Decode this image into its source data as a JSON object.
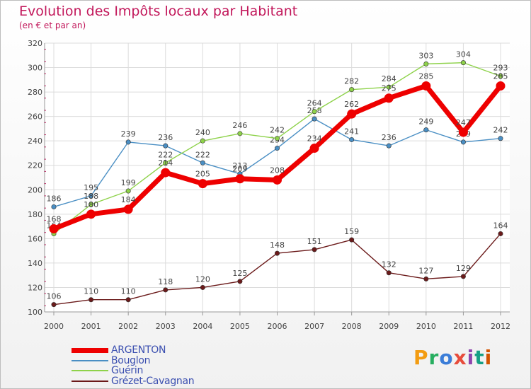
{
  "title": "Evolution des Impôts locaux par Habitant",
  "subtitle": "(en € et par an)",
  "logo_text": "Proxiti",
  "logo_colors": [
    "#f39c12",
    "#27ae60",
    "#3b7dd8",
    "#e74c3c",
    "#8e44ad",
    "#16a085",
    "#d35400"
  ],
  "chart_data": {
    "type": "line",
    "x": [
      "2000",
      "2001",
      "2002",
      "2003",
      "2004",
      "2005",
      "2006",
      "2007",
      "2008",
      "2009",
      "2010",
      "2011",
      "2012"
    ],
    "ylim": [
      100,
      320
    ],
    "yticks": [
      100,
      120,
      140,
      160,
      180,
      200,
      220,
      240,
      260,
      280,
      300,
      320
    ],
    "grid": true,
    "legend_position": "bottom-left",
    "series": [
      {
        "name": "Grézet-Cavagnan",
        "color": "#6b1a1a",
        "values": [
          106,
          110,
          110,
          118,
          120,
          125,
          148,
          151,
          159,
          132,
          127,
          129,
          164
        ],
        "weight": "thin"
      },
      {
        "name": "Bouglon",
        "color": "#4a8fc4",
        "values": [
          186,
          195,
          239,
          236,
          222,
          213,
          234,
          258,
          241,
          236,
          249,
          239,
          242
        ],
        "weight": "thin"
      },
      {
        "name": "Guérin",
        "color": "#8ed24a",
        "values": [
          164,
          188,
          199,
          222,
          240,
          246,
          242,
          264,
          282,
          284,
          303,
          304,
          293
        ],
        "weight": "thin"
      },
      {
        "name": "ARGENTON",
        "color": "#ee0000",
        "values": [
          168,
          180,
          184,
          214,
          205,
          209,
          208,
          234,
          262,
          275,
          285,
          247,
          285
        ],
        "weight": "thick"
      }
    ]
  },
  "legend": [
    {
      "name": "ARGENTON",
      "color": "#ee0000",
      "weight": "thick"
    },
    {
      "name": "Bouglon",
      "color": "#4a8fc4",
      "weight": "thin"
    },
    {
      "name": "Guérin",
      "color": "#8ed24a",
      "weight": "thin"
    },
    {
      "name": "Grézet-Cavagnan",
      "color": "#6b1a1a",
      "weight": "thin"
    }
  ]
}
